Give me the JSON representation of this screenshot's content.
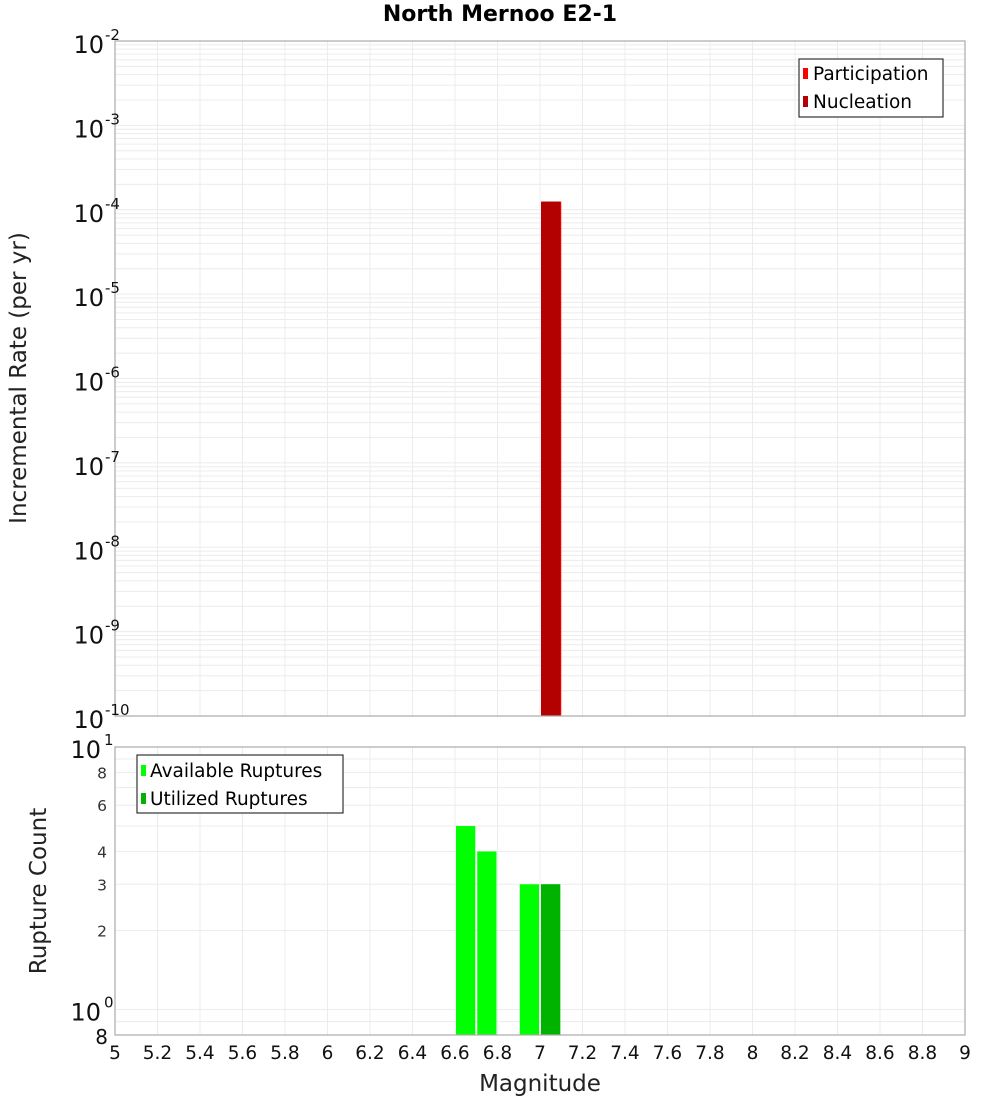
{
  "chart_data": [
    {
      "type": "bar",
      "title": "North Mernoo E2-1",
      "xlabel": "",
      "ylabel": "Incremental Rate (per yr)",
      "yscale": "log",
      "ylim": [
        1e-10,
        0.01
      ],
      "xlim": [
        5,
        9
      ],
      "grid": true,
      "legend_position": "top-right",
      "legend": [
        {
          "label": "Participation",
          "color": "#ff0000"
        },
        {
          "label": "Nucleation",
          "color": "#b30000"
        }
      ],
      "y_tick_exponents": [
        -2,
        -3,
        -4,
        -5,
        -6,
        -7,
        -8,
        -9,
        -10
      ],
      "bin_width": 0.1,
      "series": [
        {
          "name": "Participation",
          "color": "#ff0000",
          "x": [
            7.05
          ],
          "values": [
            0.000125
          ]
        },
        {
          "name": "Nucleation",
          "color": "#b30000",
          "x": [
            7.05
          ],
          "values": [
            0.000125
          ]
        }
      ]
    },
    {
      "type": "bar",
      "title": "",
      "xlabel": "Magnitude",
      "ylabel": "Rupture Count",
      "yscale": "log",
      "ylim": [
        0.8,
        10
      ],
      "xlim": [
        5,
        9
      ],
      "grid": true,
      "legend_position": "top-left",
      "legend": [
        {
          "label": "Available Ruptures",
          "color": "#00ff00"
        },
        {
          "label": "Utilized Ruptures",
          "color": "#00b300"
        }
      ],
      "y_major_ticks": [
        {
          "value": 10,
          "label": "10",
          "exp": "1"
        },
        {
          "value": 1,
          "label": "10",
          "exp": "0"
        }
      ],
      "y_minor_ticks": [
        {
          "value": 8,
          "label": "8"
        },
        {
          "value": 6,
          "label": "6"
        },
        {
          "value": 4,
          "label": "4"
        },
        {
          "value": 3,
          "label": "3"
        },
        {
          "value": 2,
          "label": "2"
        },
        {
          "value": 0.8,
          "label": "8"
        }
      ],
      "x_ticks": [
        "5",
        "5.2",
        "5.4",
        "5.6",
        "5.8",
        "6",
        "6.2",
        "6.4",
        "6.6",
        "6.8",
        "7",
        "7.2",
        "7.4",
        "7.6",
        "7.8",
        "8",
        "8.2",
        "8.4",
        "8.6",
        "8.8",
        "9"
      ],
      "bin_width": 0.1,
      "series": [
        {
          "name": "Available Ruptures",
          "color": "#00ff00",
          "x": [
            6.65,
            6.75,
            6.95,
            7.05
          ],
          "values": [
            5,
            4,
            3,
            3
          ]
        },
        {
          "name": "Utilized Ruptures",
          "color": "#00b300",
          "x": [
            7.05
          ],
          "values": [
            3
          ]
        }
      ]
    }
  ],
  "labels": {
    "title": "North Mernoo E2-1",
    "top_ylabel": "Incremental Rate (per yr)",
    "bottom_ylabel": "Rupture Count",
    "xlabel": "Magnitude"
  }
}
